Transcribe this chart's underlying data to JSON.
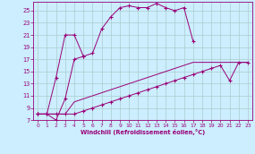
{
  "xlabel": "Windchill (Refroidissement éolien,°C)",
  "background_color": "#cceeff",
  "grid_color": "#aacccc",
  "line_color": "#990077",
  "xlim": [
    -0.5,
    23.5
  ],
  "ylim": [
    7,
    26.5
  ],
  "xticks": [
    0,
    1,
    2,
    3,
    4,
    5,
    6,
    7,
    8,
    9,
    10,
    11,
    12,
    13,
    14,
    15,
    16,
    17,
    18,
    19,
    20,
    21,
    22,
    23
  ],
  "yticks": [
    7,
    9,
    11,
    13,
    15,
    17,
    19,
    21,
    23,
    25
  ],
  "series": [
    {
      "x": [
        0,
        1,
        2,
        3,
        4,
        5,
        6,
        7,
        8,
        9,
        10,
        11,
        12,
        13,
        14,
        15,
        16,
        17
      ],
      "y": [
        8,
        8,
        14,
        21,
        21,
        17.5,
        18,
        22,
        24,
        25.5,
        25.8,
        25.5,
        25.5,
        26.2,
        25.5,
        25,
        25.5,
        20
      ],
      "marker": true
    },
    {
      "x": [
        0,
        1,
        2,
        3,
        4,
        5
      ],
      "y": [
        8,
        8,
        7,
        10.5,
        17,
        17.5
      ],
      "marker": true
    },
    {
      "x": [
        0,
        1,
        2,
        3,
        4,
        5,
        6,
        7,
        8,
        9,
        10,
        11,
        12,
        13,
        14,
        15,
        16,
        17,
        18,
        19,
        20,
        21,
        22,
        23
      ],
      "y": [
        8,
        8,
        8,
        8,
        10,
        10.5,
        11,
        11.5,
        12,
        12.5,
        13,
        13.5,
        14,
        14.5,
        15,
        15.5,
        16,
        16.5,
        16.5,
        16.5,
        16.5,
        16.5,
        16.5,
        16.5
      ],
      "marker": false
    },
    {
      "x": [
        0,
        1,
        2,
        3,
        4,
        5,
        6,
        7,
        8,
        9,
        10,
        11,
        12,
        13,
        14,
        15,
        16,
        17,
        18,
        19,
        20,
        21,
        22,
        23
      ],
      "y": [
        8,
        8,
        8,
        8,
        8,
        8.5,
        9,
        9.5,
        10,
        10.5,
        11,
        11.5,
        12,
        12.5,
        13,
        13.5,
        14,
        14.5,
        15,
        15.5,
        16,
        13.5,
        16.5,
        16.5
      ],
      "marker": true
    }
  ]
}
